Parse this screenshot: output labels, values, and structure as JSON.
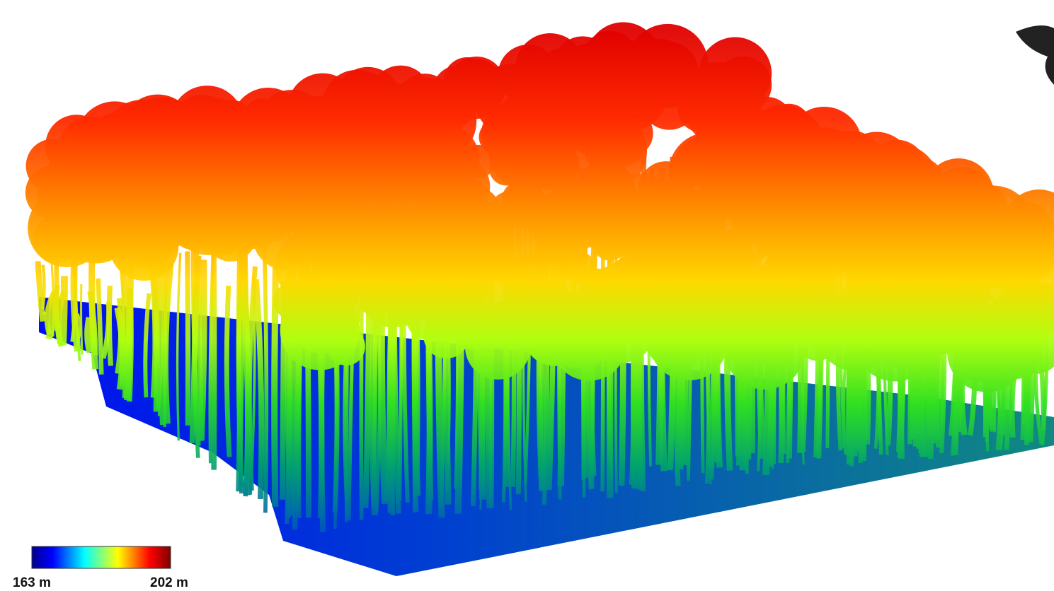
{
  "colorbar": {
    "min_label": "163 m",
    "max_label": "202 m"
  }
}
